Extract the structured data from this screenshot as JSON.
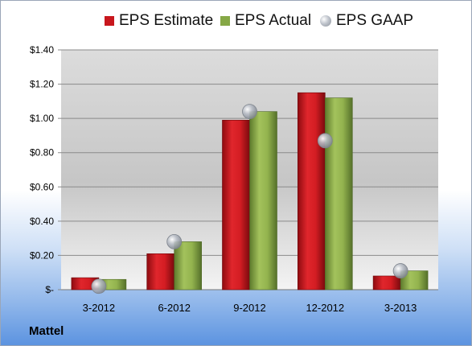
{
  "company": "Mattel",
  "chart_data": {
    "type": "bar",
    "categories": [
      "3-2012",
      "6-2012",
      "9-2012",
      "12-2012",
      "3-2013"
    ],
    "series": [
      {
        "name": "EPS Estimate",
        "values": [
          0.07,
          0.21,
          0.99,
          1.15,
          0.08
        ],
        "color": "#c8171d"
      },
      {
        "name": "EPS Actual",
        "values": [
          0.06,
          0.28,
          1.04,
          1.12,
          0.11
        ],
        "color": "#86a846"
      },
      {
        "name": "EPS GAAP",
        "values": [
          0.02,
          0.28,
          1.04,
          0.87,
          0.11
        ],
        "color": "#a9aeb6",
        "marker": "circle"
      }
    ],
    "yticks": [
      "$-",
      "$0.20",
      "$0.40",
      "$0.60",
      "$0.80",
      "$1.00",
      "$1.20",
      "$1.40"
    ],
    "ylim": [
      0,
      1.4
    ],
    "grid": true,
    "legend": "top-center"
  }
}
